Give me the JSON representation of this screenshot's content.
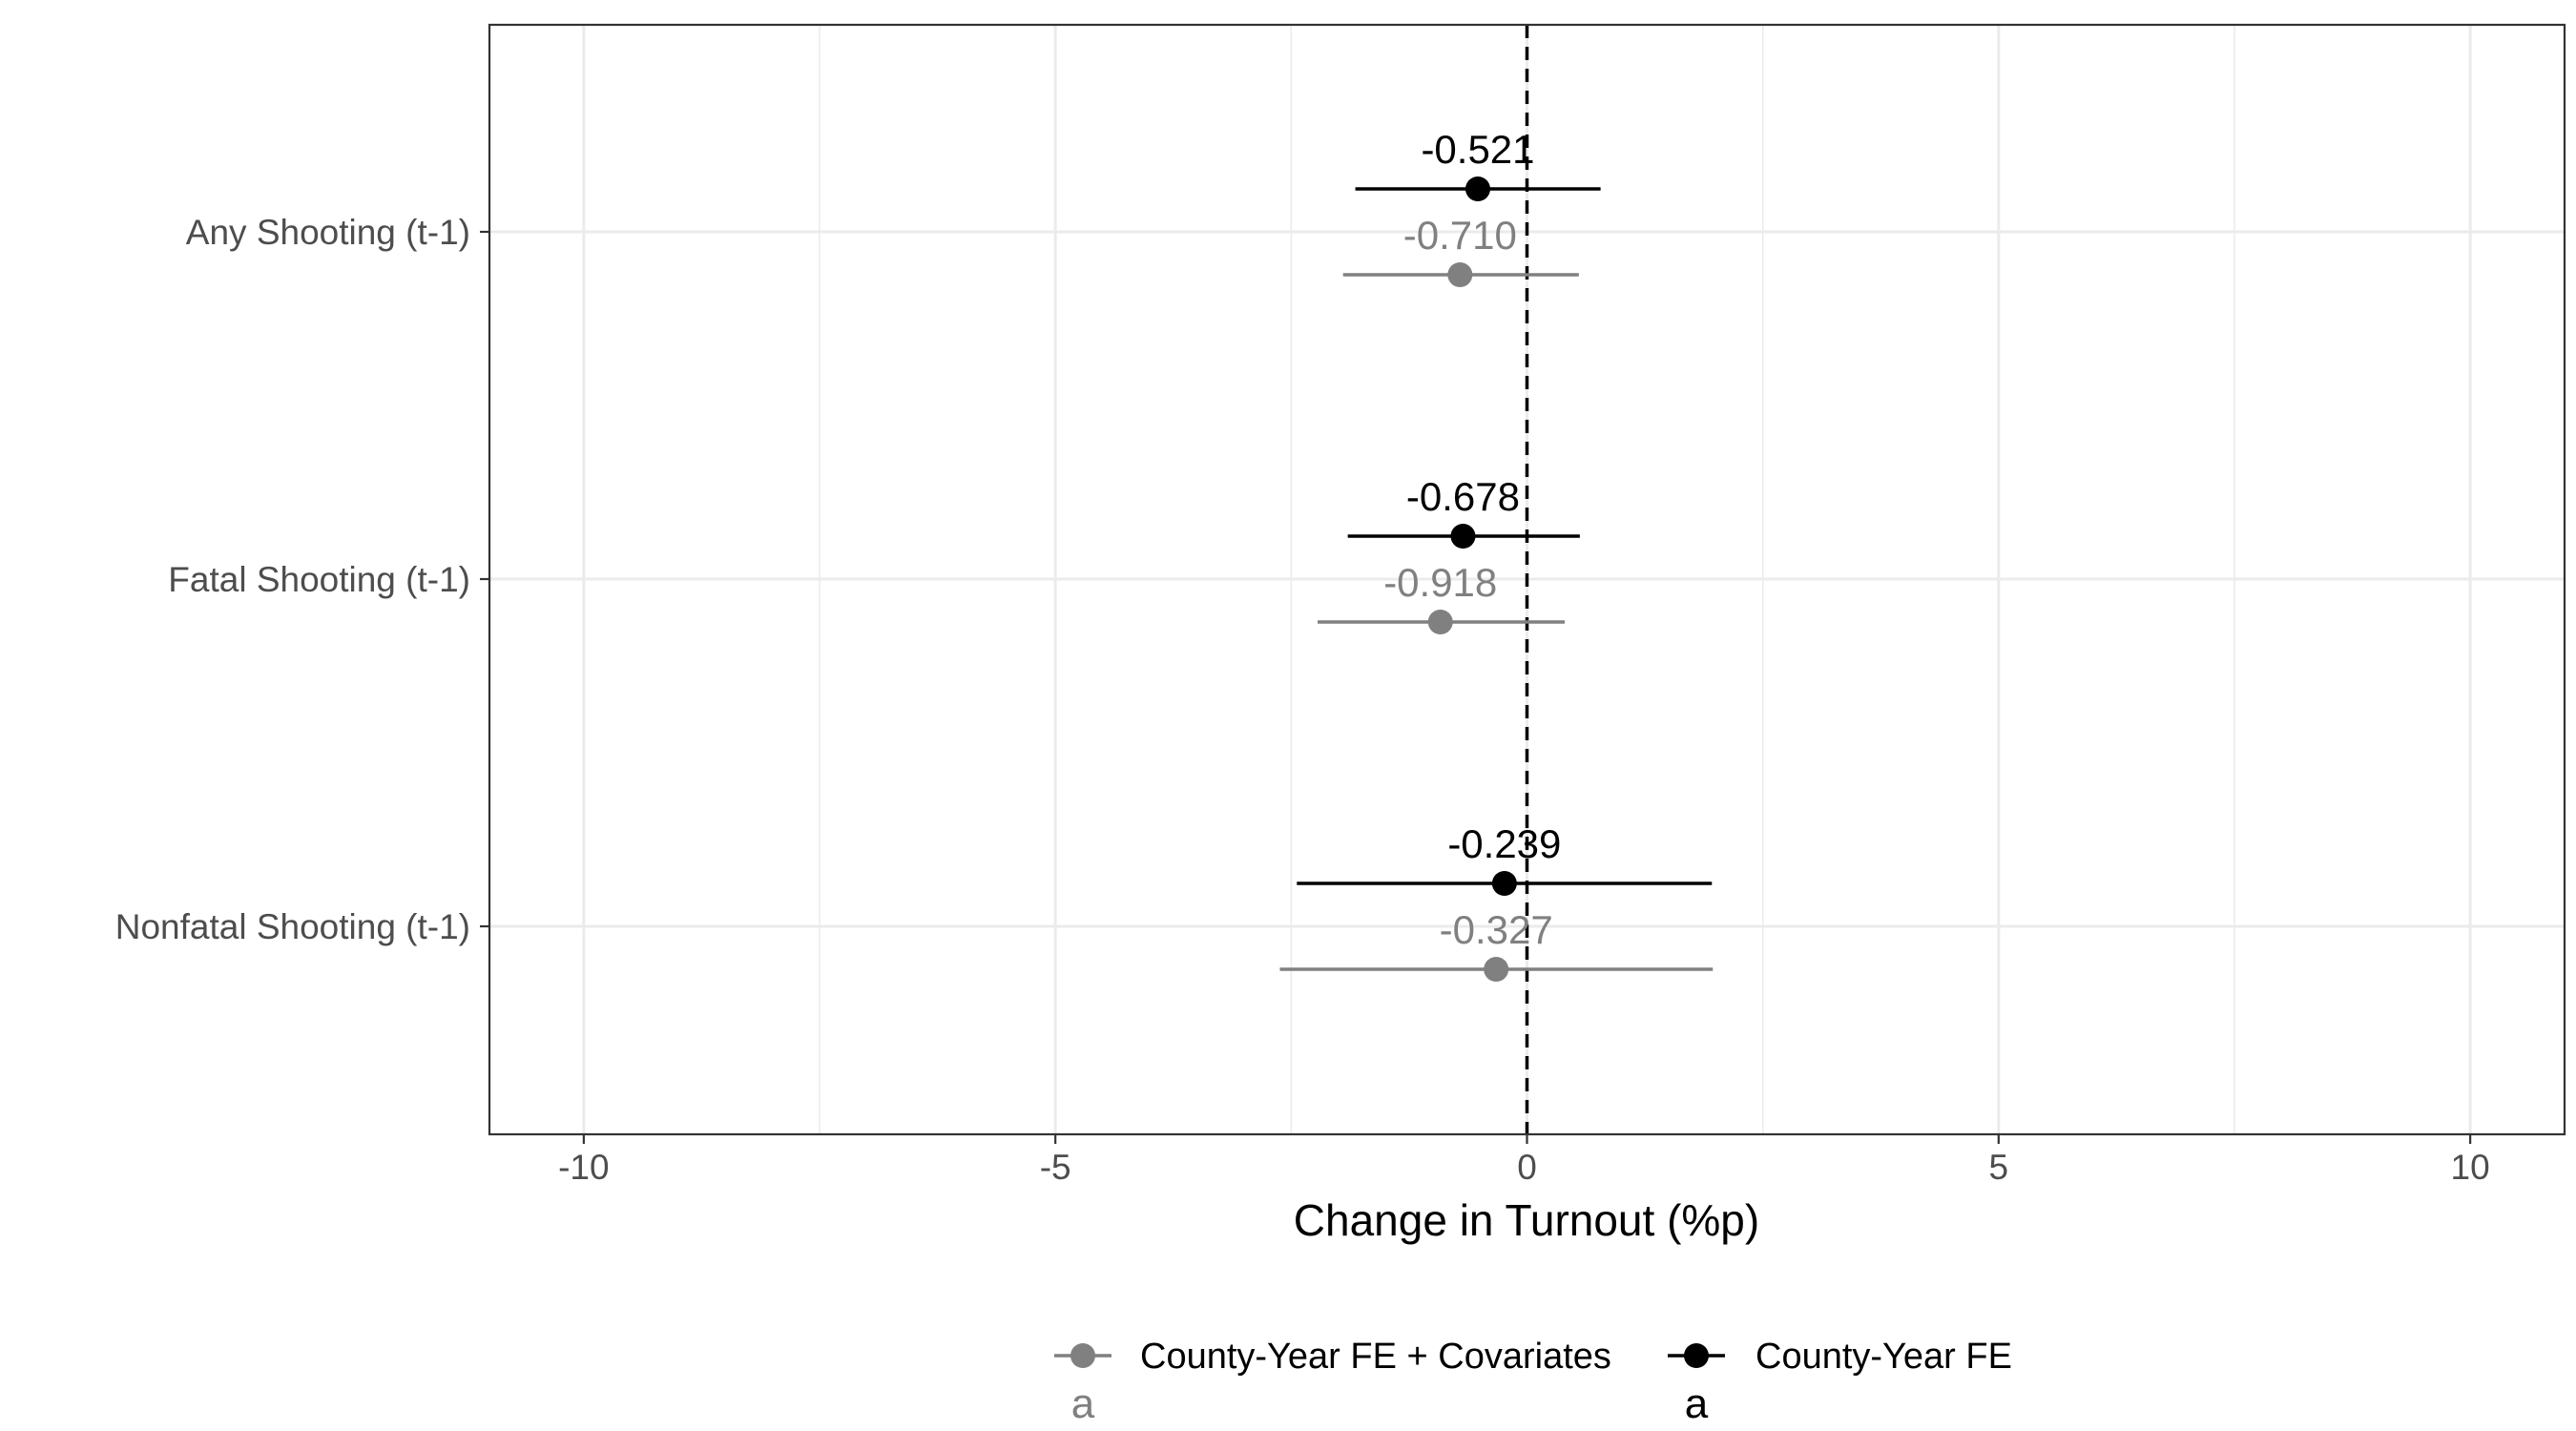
{
  "chart_data": {
    "type": "scatter",
    "subtype": "coefficient-plot",
    "xlabel": "Change in Turnout (%p)",
    "ylabel": "",
    "xlim": [
      -11,
      11
    ],
    "x_ticks": [
      -10,
      -5,
      0,
      5,
      10
    ],
    "x_tick_labels": [
      "-10",
      "-5",
      "0",
      "5",
      "10"
    ],
    "reference_line": 0,
    "grid": true,
    "legend_position": "bottom",
    "categories": [
      "Any Shooting (t-1)",
      "Fatal Shooting (t-1)",
      "Nonfatal Shooting (t-1)"
    ],
    "series": [
      {
        "name": "County-Year FE",
        "color": "#000000",
        "estimates": [
          -0.521,
          -0.678,
          -0.239
        ],
        "labels": [
          "-0.521",
          "-0.678",
          "-0.239"
        ],
        "ci_low": [
          -1.82,
          -1.9,
          -2.44
        ],
        "ci_high": [
          0.78,
          0.56,
          1.96
        ]
      },
      {
        "name": "County-Year FE + Covariates",
        "color": "#808080",
        "estimates": [
          -0.71,
          -0.918,
          -0.327
        ],
        "labels": [
          "-0.710",
          "-0.918",
          "-0.327"
        ],
        "ci_low": [
          -1.95,
          -2.22,
          -2.62
        ],
        "ci_high": [
          0.55,
          0.4,
          1.97
        ]
      }
    ],
    "legend": {
      "items": [
        {
          "label": "County-Year FE + Covariates",
          "color": "#808080",
          "key_text": "a"
        },
        {
          "label": "County-Year FE",
          "color": "#000000",
          "key_text": "a"
        }
      ]
    }
  }
}
